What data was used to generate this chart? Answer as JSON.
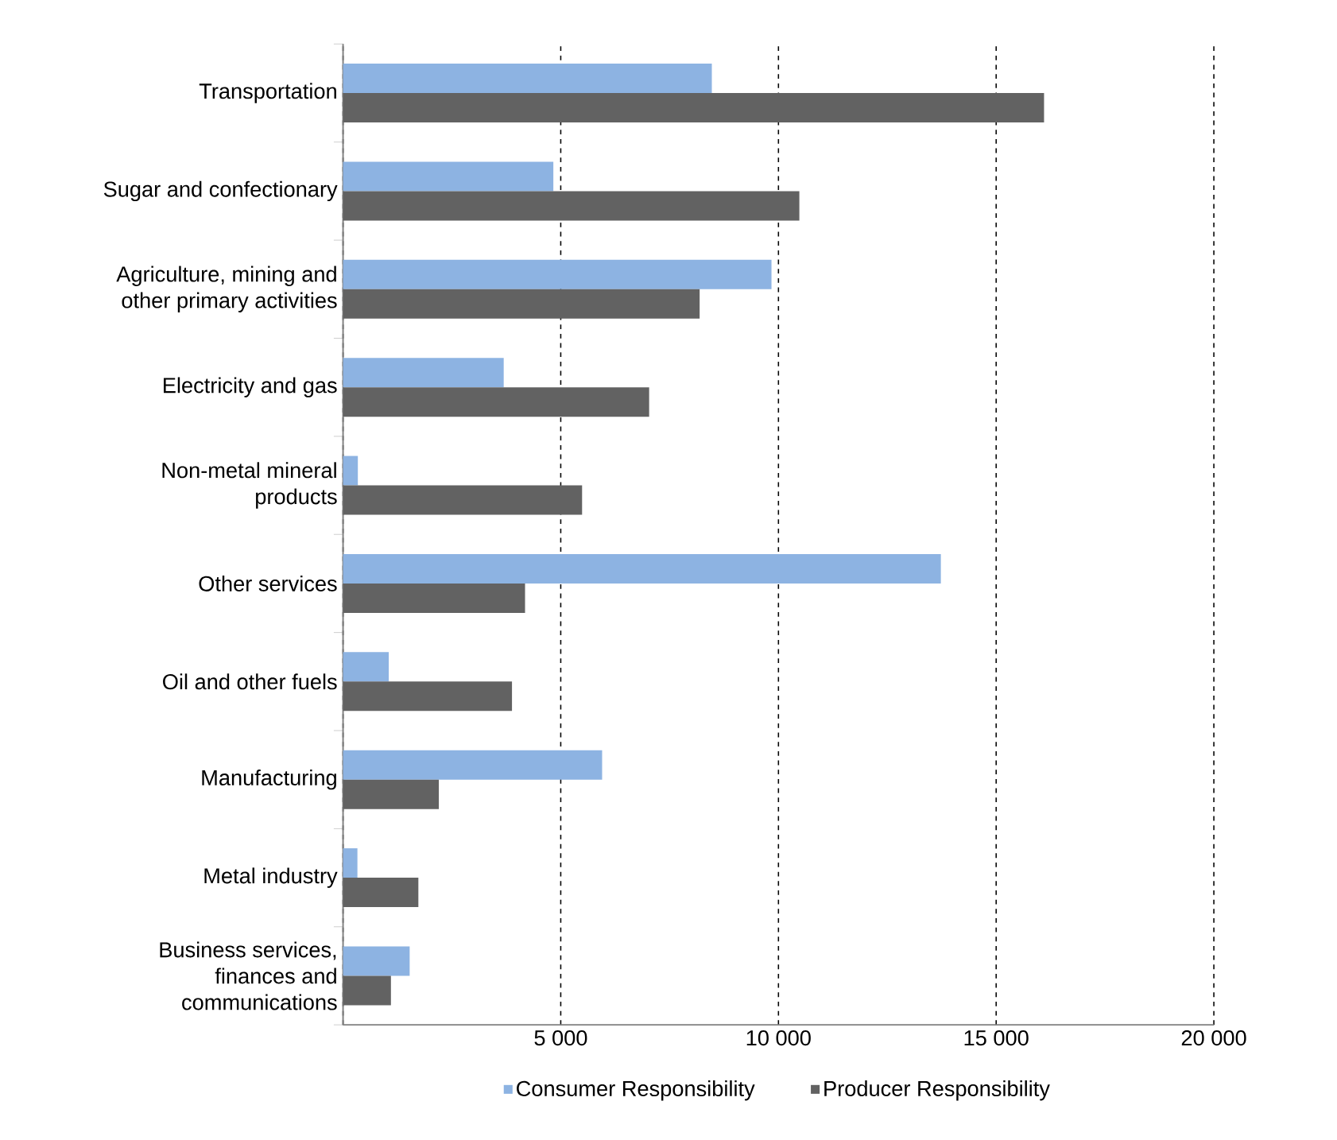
{
  "chart_data": {
    "type": "bar",
    "orientation": "horizontal",
    "categories": [
      "Transportation",
      "Sugar and confectionary",
      "Agriculture, mining and other primary activities",
      "Electricity and gas",
      "Non-metal mineral products",
      "Other services",
      "Oil and other fuels",
      "Manufacturing",
      "Metal industry",
      "Business services, finances and communications"
    ],
    "series": [
      {
        "name": "Consumer Responsibility",
        "color": "#8db3e2",
        "values": [
          8470,
          4830,
          9840,
          3690,
          340,
          13730,
          1050,
          5950,
          330,
          1530
        ]
      },
      {
        "name": "Producer Responsibility",
        "color": "#626262",
        "values": [
          16100,
          10480,
          8190,
          7030,
          5490,
          4180,
          3880,
          2200,
          1730,
          1100
        ]
      }
    ],
    "xlim": [
      0,
      20000
    ],
    "xticks": [
      {
        "value": 0,
        "label": null
      },
      {
        "value": 5000,
        "label": "5 000"
      },
      {
        "value": 10000,
        "label": "10 000"
      },
      {
        "value": 15000,
        "label": "15 000"
      },
      {
        "value": 20000,
        "label": "20 000"
      }
    ],
    "grid": "x",
    "legend": "bottom"
  }
}
